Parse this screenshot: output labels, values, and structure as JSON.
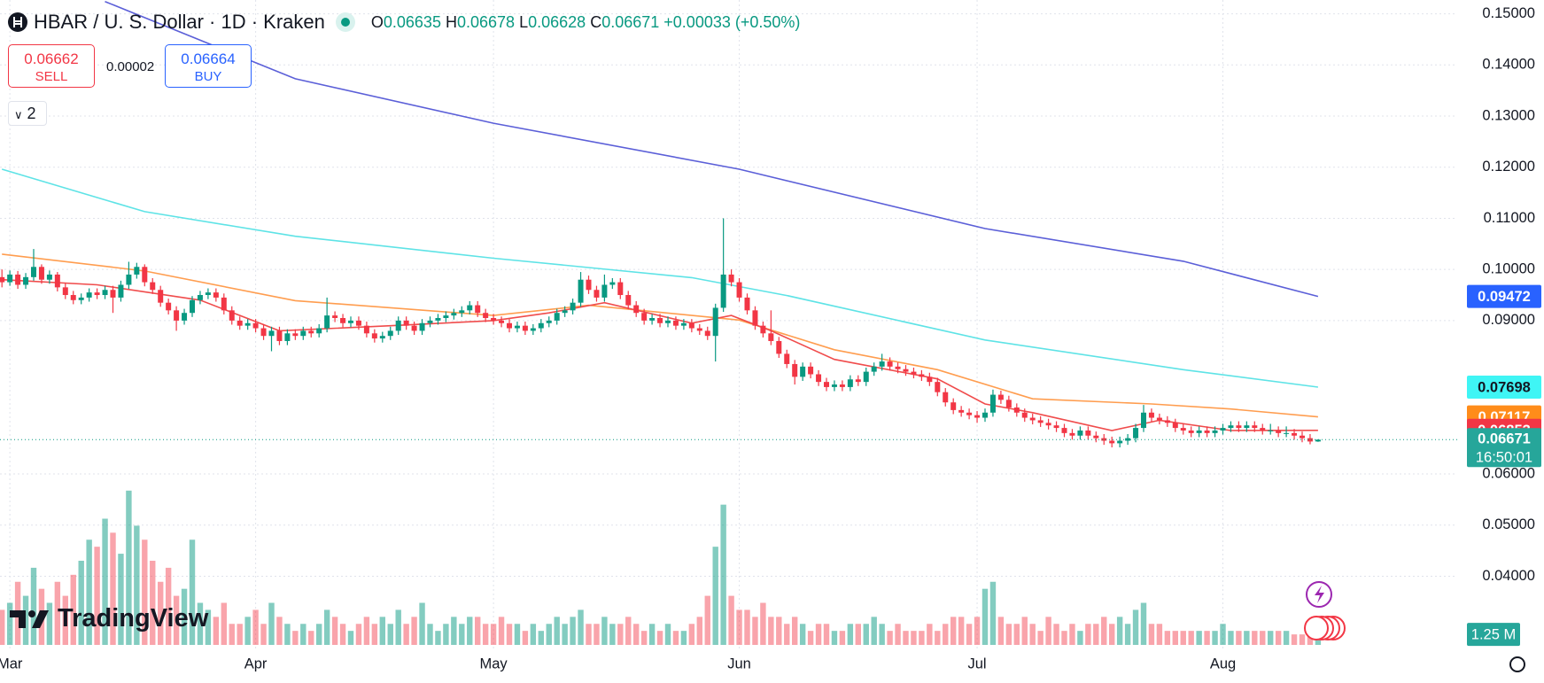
{
  "header": {
    "symbol": "HBAR / U. S. Dollar · 1D · Kraken",
    "ohlc_labels": [
      "O",
      "H",
      "L",
      "C"
    ],
    "change": "+0.00033 (+0.50%)",
    "sell": {
      "price": 0.06662,
      "label": "SELL"
    },
    "spread": 2e-05,
    "buy": {
      "price": 0.06664,
      "label": "BUY"
    },
    "indicators_count": 2,
    "logo": "TradingView",
    "countdown": "16:50:01"
  },
  "chart_data": {
    "type": "candlestick",
    "up_color": "#089981",
    "down_color": "#f23645",
    "ylim": [
      0.0257,
      0.1527
    ],
    "yticks": [
      {
        "value": 0.15,
        "label": "0.15000"
      },
      {
        "value": 0.14,
        "label": "0.14000"
      },
      {
        "value": 0.13,
        "label": "0.13000"
      },
      {
        "value": 0.12,
        "label": "0.12000"
      },
      {
        "value": 0.11,
        "label": "0.11000"
      },
      {
        "value": 0.1,
        "label": "0.10000"
      },
      {
        "value": 0.09,
        "label": "0.09000"
      },
      {
        "value": 0.06,
        "label": "0.06000"
      },
      {
        "value": 0.05,
        "label": "0.05000"
      },
      {
        "value": 0.04,
        "label": "0.04000"
      }
    ],
    "xticks": [
      {
        "value": 1,
        "label": "Mar"
      },
      {
        "value": 32,
        "label": "Apr"
      },
      {
        "value": 62,
        "label": "May"
      },
      {
        "value": 93,
        "label": "Jun"
      },
      {
        "value": 123,
        "label": "Jul"
      },
      {
        "value": 154,
        "label": "Aug"
      }
    ],
    "grid": true,
    "candles": [
      [
        0.0985,
        0.1,
        0.0965,
        0.0975
      ],
      [
        0.0975,
        0.0998,
        0.0968,
        0.099
      ],
      [
        0.099,
        0.0997,
        0.0962,
        0.097
      ],
      [
        0.097,
        0.0993,
        0.0962,
        0.0985
      ],
      [
        0.0985,
        0.104,
        0.0978,
        0.1005
      ],
      [
        0.1005,
        0.101,
        0.0972,
        0.098
      ],
      [
        0.098,
        0.0998,
        0.0972,
        0.099
      ],
      [
        0.099,
        0.0995,
        0.0957,
        0.0965
      ],
      [
        0.0965,
        0.0973,
        0.0942,
        0.095
      ],
      [
        0.095,
        0.0958,
        0.0932,
        0.094
      ],
      [
        0.094,
        0.0953,
        0.0932,
        0.0945
      ],
      [
        0.0945,
        0.0963,
        0.0937,
        0.0955
      ],
      [
        0.0955,
        0.0963,
        0.0942,
        0.095
      ],
      [
        0.095,
        0.0968,
        0.0942,
        0.096
      ],
      [
        0.096,
        0.0968,
        0.0915,
        0.0945
      ],
      [
        0.0945,
        0.0978,
        0.0937,
        0.097
      ],
      [
        0.097,
        0.1015,
        0.0962,
        0.099
      ],
      [
        0.099,
        0.1013,
        0.0982,
        0.1005
      ],
      [
        0.1005,
        0.101,
        0.0967,
        0.0975
      ],
      [
        0.0975,
        0.0983,
        0.0952,
        0.096
      ],
      [
        0.096,
        0.0968,
        0.0927,
        0.0935
      ],
      [
        0.0935,
        0.0943,
        0.0912,
        0.092
      ],
      [
        0.092,
        0.0928,
        0.088,
        0.09
      ],
      [
        0.09,
        0.0923,
        0.0892,
        0.0915
      ],
      [
        0.0915,
        0.0948,
        0.0907,
        0.094
      ],
      [
        0.094,
        0.0958,
        0.0932,
        0.095
      ],
      [
        0.095,
        0.0963,
        0.0942,
        0.0955
      ],
      [
        0.0955,
        0.0963,
        0.0937,
        0.0945
      ],
      [
        0.0945,
        0.0953,
        0.0912,
        0.092
      ],
      [
        0.092,
        0.0928,
        0.0892,
        0.09
      ],
      [
        0.09,
        0.0908,
        0.0882,
        0.089
      ],
      [
        0.089,
        0.0903,
        0.0882,
        0.0895
      ],
      [
        0.0895,
        0.0903,
        0.0877,
        0.0885
      ],
      [
        0.0885,
        0.0893,
        0.0862,
        0.087
      ],
      [
        0.087,
        0.0888,
        0.084,
        0.088
      ],
      [
        0.088,
        0.0888,
        0.0852,
        0.086
      ],
      [
        0.086,
        0.0883,
        0.0852,
        0.0875
      ],
      [
        0.0875,
        0.0883,
        0.0862,
        0.087
      ],
      [
        0.087,
        0.0888,
        0.0862,
        0.088
      ],
      [
        0.088,
        0.0888,
        0.0867,
        0.0875
      ],
      [
        0.0875,
        0.0893,
        0.0867,
        0.0885
      ],
      [
        0.0885,
        0.0945,
        0.0877,
        0.091
      ],
      [
        0.091,
        0.0918,
        0.0897,
        0.0905
      ],
      [
        0.0905,
        0.0913,
        0.0887,
        0.0895
      ],
      [
        0.0895,
        0.0908,
        0.0887,
        0.09
      ],
      [
        0.09,
        0.0908,
        0.0882,
        0.089
      ],
      [
        0.089,
        0.0898,
        0.0867,
        0.0875
      ],
      [
        0.0875,
        0.0883,
        0.0857,
        0.0865
      ],
      [
        0.0865,
        0.0878,
        0.0857,
        0.087
      ],
      [
        0.087,
        0.0888,
        0.0862,
        0.088
      ],
      [
        0.088,
        0.0908,
        0.0872,
        0.09
      ],
      [
        0.09,
        0.0908,
        0.0882,
        0.089
      ],
      [
        0.089,
        0.0898,
        0.0872,
        0.088
      ],
      [
        0.088,
        0.0903,
        0.0872,
        0.0895
      ],
      [
        0.0895,
        0.0908,
        0.0887,
        0.09
      ],
      [
        0.09,
        0.0913,
        0.0892,
        0.0905
      ],
      [
        0.0905,
        0.0918,
        0.0897,
        0.091
      ],
      [
        0.091,
        0.0923,
        0.0902,
        0.0915
      ],
      [
        0.0915,
        0.0928,
        0.0907,
        0.092
      ],
      [
        0.092,
        0.0938,
        0.0912,
        0.093
      ],
      [
        0.093,
        0.0938,
        0.0907,
        0.0915
      ],
      [
        0.0915,
        0.0923,
        0.0897,
        0.0905
      ],
      [
        0.0905,
        0.0913,
        0.0892,
        0.09
      ],
      [
        0.09,
        0.0908,
        0.0887,
        0.0895
      ],
      [
        0.0895,
        0.0903,
        0.0877,
        0.0885
      ],
      [
        0.0885,
        0.0898,
        0.0877,
        0.089
      ],
      [
        0.089,
        0.0898,
        0.0872,
        0.088
      ],
      [
        0.088,
        0.0893,
        0.0872,
        0.0885
      ],
      [
        0.0885,
        0.0903,
        0.0877,
        0.0895
      ],
      [
        0.0895,
        0.0908,
        0.0887,
        0.09
      ],
      [
        0.09,
        0.0923,
        0.0892,
        0.0915
      ],
      [
        0.0915,
        0.0928,
        0.0907,
        0.092
      ],
      [
        0.092,
        0.0943,
        0.0912,
        0.0935
      ],
      [
        0.0935,
        0.0995,
        0.0927,
        0.098
      ],
      [
        0.098,
        0.0988,
        0.0952,
        0.096
      ],
      [
        0.096,
        0.0968,
        0.0937,
        0.0945
      ],
      [
        0.0945,
        0.099,
        0.0937,
        0.097
      ],
      [
        0.097,
        0.0983,
        0.0962,
        0.0975
      ],
      [
        0.0975,
        0.0983,
        0.0942,
        0.095
      ],
      [
        0.095,
        0.0958,
        0.0922,
        0.093
      ],
      [
        0.093,
        0.0938,
        0.0907,
        0.0915
      ],
      [
        0.0915,
        0.0923,
        0.0892,
        0.09
      ],
      [
        0.09,
        0.0913,
        0.0892,
        0.0905
      ],
      [
        0.0905,
        0.0913,
        0.0887,
        0.0895
      ],
      [
        0.0895,
        0.0908,
        0.0887,
        0.09
      ],
      [
        0.09,
        0.0908,
        0.0882,
        0.089
      ],
      [
        0.089,
        0.0903,
        0.0882,
        0.0895
      ],
      [
        0.0895,
        0.0903,
        0.0877,
        0.0885
      ],
      [
        0.0885,
        0.0893,
        0.0872,
        0.088
      ],
      [
        0.088,
        0.0888,
        0.0862,
        0.087
      ],
      [
        0.087,
        0.0933,
        0.082,
        0.0925
      ],
      [
        0.0925,
        0.11,
        0.0917,
        0.099
      ],
      [
        0.099,
        0.1,
        0.0967,
        0.0975
      ],
      [
        0.0975,
        0.0983,
        0.0937,
        0.0945
      ],
      [
        0.0945,
        0.0953,
        0.0912,
        0.092
      ],
      [
        0.092,
        0.0928,
        0.0882,
        0.089
      ],
      [
        0.089,
        0.0898,
        0.0867,
        0.0875
      ],
      [
        0.0875,
        0.092,
        0.0852,
        0.086
      ],
      [
        0.086,
        0.0868,
        0.0827,
        0.0835
      ],
      [
        0.0835,
        0.0843,
        0.0807,
        0.0815
      ],
      [
        0.0815,
        0.0823,
        0.0775,
        0.079
      ],
      [
        0.079,
        0.0818,
        0.0782,
        0.081
      ],
      [
        0.081,
        0.0818,
        0.0787,
        0.0795
      ],
      [
        0.0795,
        0.0803,
        0.0772,
        0.078
      ],
      [
        0.078,
        0.0788,
        0.0762,
        0.077
      ],
      [
        0.077,
        0.0783,
        0.0762,
        0.0775
      ],
      [
        0.0775,
        0.0783,
        0.0762,
        0.077
      ],
      [
        0.077,
        0.0793,
        0.0762,
        0.0785
      ],
      [
        0.0785,
        0.0793,
        0.0772,
        0.078
      ],
      [
        0.078,
        0.0808,
        0.0772,
        0.08
      ],
      [
        0.08,
        0.0818,
        0.0792,
        0.081
      ],
      [
        0.081,
        0.0835,
        0.0802,
        0.082
      ],
      [
        0.082,
        0.0828,
        0.0802,
        0.081
      ],
      [
        0.081,
        0.0818,
        0.0797,
        0.0805
      ],
      [
        0.0805,
        0.0813,
        0.0792,
        0.08
      ],
      [
        0.08,
        0.0808,
        0.0787,
        0.0795
      ],
      [
        0.0795,
        0.0803,
        0.0782,
        0.079
      ],
      [
        0.079,
        0.0798,
        0.0772,
        0.078
      ],
      [
        0.078,
        0.0788,
        0.0752,
        0.076
      ],
      [
        0.076,
        0.0768,
        0.0732,
        0.074
      ],
      [
        0.074,
        0.0748,
        0.0717,
        0.0725
      ],
      [
        0.0725,
        0.0733,
        0.0712,
        0.072
      ],
      [
        0.072,
        0.0728,
        0.0707,
        0.0715
      ],
      [
        0.0715,
        0.0723,
        0.07,
        0.071
      ],
      [
        0.071,
        0.0728,
        0.0702,
        0.072
      ],
      [
        0.072,
        0.0765,
        0.0712,
        0.0755
      ],
      [
        0.0755,
        0.0763,
        0.0737,
        0.0745
      ],
      [
        0.0745,
        0.0753,
        0.0722,
        0.073
      ],
      [
        0.073,
        0.0738,
        0.0712,
        0.072
      ],
      [
        0.072,
        0.0728,
        0.0702,
        0.071
      ],
      [
        0.071,
        0.0718,
        0.0697,
        0.0705
      ],
      [
        0.0705,
        0.0713,
        0.0692,
        0.07
      ],
      [
        0.07,
        0.0708,
        0.0687,
        0.0695
      ],
      [
        0.0695,
        0.0703,
        0.0682,
        0.069
      ],
      [
        0.069,
        0.0698,
        0.0672,
        0.068
      ],
      [
        0.068,
        0.0688,
        0.0667,
        0.0675
      ],
      [
        0.0675,
        0.0693,
        0.0667,
        0.0685
      ],
      [
        0.0685,
        0.0693,
        0.0667,
        0.0675
      ],
      [
        0.0675,
        0.0683,
        0.0662,
        0.067
      ],
      [
        0.067,
        0.0678,
        0.0657,
        0.0665
      ],
      [
        0.0665,
        0.0673,
        0.0652,
        0.066
      ],
      [
        0.066,
        0.0673,
        0.0652,
        0.0665
      ],
      [
        0.0665,
        0.0678,
        0.0657,
        0.067
      ],
      [
        0.067,
        0.0698,
        0.0662,
        0.069
      ],
      [
        0.069,
        0.0735,
        0.0682,
        0.072
      ],
      [
        0.072,
        0.0728,
        0.0702,
        0.071
      ],
      [
        0.071,
        0.0718,
        0.0697,
        0.0705
      ],
      [
        0.0705,
        0.0713,
        0.0692,
        0.07
      ],
      [
        0.07,
        0.0708,
        0.0682,
        0.069
      ],
      [
        0.069,
        0.0698,
        0.0677,
        0.0685
      ],
      [
        0.0685,
        0.0693,
        0.0672,
        0.068
      ],
      [
        0.068,
        0.0693,
        0.0672,
        0.0685
      ],
      [
        0.0685,
        0.0693,
        0.0672,
        0.068
      ],
      [
        0.068,
        0.0693,
        0.0672,
        0.0685
      ],
      [
        0.0685,
        0.0698,
        0.0677,
        0.069
      ],
      [
        0.069,
        0.0703,
        0.0682,
        0.0695
      ],
      [
        0.0695,
        0.0703,
        0.0682,
        0.069
      ],
      [
        0.069,
        0.0703,
        0.0682,
        0.0695
      ],
      [
        0.0695,
        0.0703,
        0.0682,
        0.069
      ],
      [
        0.069,
        0.0698,
        0.0677,
        0.0685
      ],
      [
        0.0685,
        0.0698,
        0.0677,
        0.0685
      ],
      [
        0.0685,
        0.0693,
        0.0672,
        0.068
      ],
      [
        0.068,
        0.0693,
        0.0672,
        0.068
      ],
      [
        0.068,
        0.0688,
        0.0667,
        0.0675
      ],
      [
        0.0675,
        0.0683,
        0.0662,
        0.067
      ],
      [
        0.067,
        0.0678,
        0.0658,
        0.06635
      ],
      [
        0.06635,
        0.06678,
        0.06628,
        0.06671
      ]
    ],
    "volume": {
      "values": [
        5,
        6,
        9,
        7,
        11,
        8,
        6,
        9,
        7,
        10,
        12,
        15,
        14,
        18,
        16,
        13,
        22,
        17,
        15,
        12,
        9,
        11,
        7,
        8,
        15,
        6,
        5,
        4,
        6,
        3,
        3,
        4,
        5,
        3,
        6,
        4,
        3,
        2,
        3,
        2,
        3,
        5,
        4,
        3,
        2,
        3,
        4,
        3,
        4,
        3,
        5,
        3,
        4,
        6,
        3,
        2,
        3,
        4,
        3,
        4,
        4,
        3,
        3,
        4,
        3,
        3,
        2,
        3,
        2,
        3,
        4,
        3,
        4,
        5,
        3,
        3,
        4,
        3,
        3,
        4,
        3,
        2,
        3,
        2,
        3,
        2,
        2,
        3,
        4,
        7,
        14,
        20,
        7,
        5,
        5,
        4,
        6,
        4,
        4,
        3,
        4,
        3,
        2,
        3,
        3,
        2,
        2,
        3,
        3,
        3,
        4,
        3,
        2,
        3,
        2,
        2,
        2,
        3,
        2,
        3,
        4,
        4,
        3,
        4,
        8,
        9,
        4,
        3,
        3,
        4,
        3,
        2,
        4,
        3,
        2,
        3,
        2,
        3,
        3,
        4,
        3,
        4,
        3,
        5,
        6,
        3,
        3,
        2,
        2,
        2,
        2,
        2,
        2,
        2,
        3,
        2,
        2,
        2,
        2,
        2,
        2,
        2,
        2,
        1.5,
        1.5,
        1.5,
        1.25
      ],
      "last_label": "1.25 M",
      "ylim": [
        0,
        24
      ]
    },
    "ma_series": [
      {
        "color": "#5b5fd8",
        "x": [
          13,
          37,
          62,
          93,
          124,
          149,
          166
        ],
        "values": [
          0.1524,
          0.1373,
          0.1286,
          0.1196,
          0.108,
          0.1016,
          0.09472
        ]
      },
      {
        "color": "#5ee3e6",
        "x": [
          0,
          18,
          37,
          62,
          87,
          99,
          124,
          149,
          166
        ],
        "values": [
          0.1196,
          0.1113,
          0.1065,
          0.1022,
          0.0984,
          0.0949,
          0.0862,
          0.0804,
          0.07698
        ]
      },
      {
        "color": "#ff9d4f",
        "x": [
          0,
          18,
          37,
          62,
          74,
          93,
          105,
          118,
          130,
          145,
          155,
          166
        ],
        "values": [
          0.103,
          0.0997,
          0.0939,
          0.091,
          0.093,
          0.0901,
          0.0843,
          0.0804,
          0.0747,
          0.0737,
          0.0727,
          0.07117
        ]
      },
      {
        "color": "#f04c4c",
        "x": [
          0,
          12,
          25,
          35,
          49,
          62,
          69,
          76,
          87,
          92,
          97,
          105,
          118,
          124,
          130,
          140,
          146,
          155,
          166
        ],
        "values": [
          0.098,
          0.097,
          0.094,
          0.088,
          0.089,
          0.09,
          0.0915,
          0.0935,
          0.0895,
          0.091,
          0.088,
          0.0824,
          0.0786,
          0.0737,
          0.072,
          0.0685,
          0.0705,
          0.0685,
          0.06853
        ]
      }
    ]
  }
}
